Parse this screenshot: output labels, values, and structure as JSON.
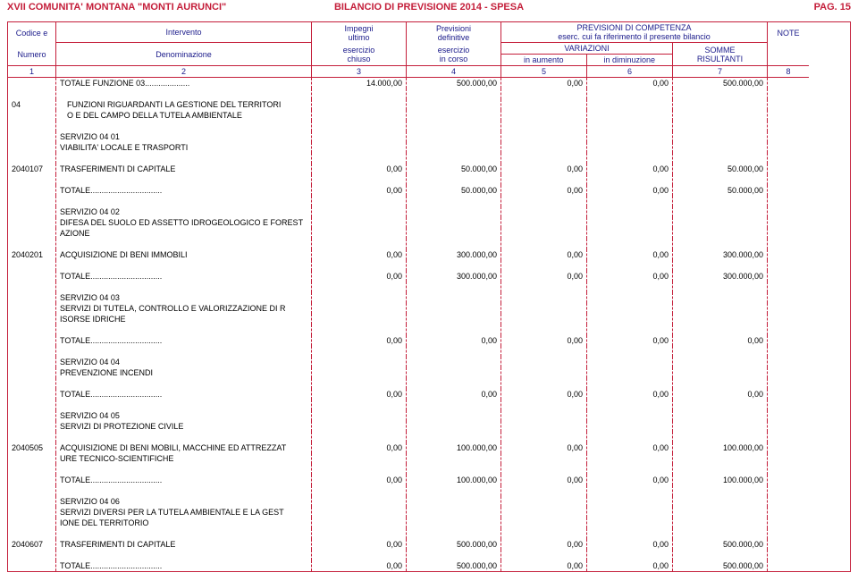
{
  "header": {
    "org": "XVII COMUNITA' MONTANA \"MONTI AURUNCI\"",
    "title": "BILANCIO DI PREVISIONE 2014 - SPESA",
    "page": "PAG. 15"
  },
  "columns": {
    "col1_a": "Codice e",
    "col1_b": "Numero",
    "col2_a": "Intervento",
    "col2_b": "Denominazione",
    "col3_a": "Impegni",
    "col3_b": "ultimo",
    "col3_c": "esercizio",
    "col3_d": "chiuso",
    "col4_a": "Previsioni",
    "col4_b": "definitive",
    "col4_c": "esercizio",
    "col4_d": "in corso",
    "col567_a": "PREVISIONI DI COMPETENZA",
    "col567_b": "eserc. cui fa riferimento il presente bilancio",
    "col56_a": "VARIAZIONI",
    "col5_a": "in aumento",
    "col6_a": "in diminuzione",
    "col7_a": "SOMME",
    "col7_b": "RISULTANTI",
    "col8_a": "NOTE",
    "n1": "1",
    "n2": "2",
    "n3": "3",
    "n4": "4",
    "n5": "5",
    "n6": "6",
    "n7": "7",
    "n8": "8"
  },
  "colors": {
    "border": "#c41e3a",
    "header_text": "#c41e3a",
    "col_label": "#1a1a8a",
    "body_text": "#000000",
    "background": "#ffffff"
  },
  "fonts": {
    "header_size": 11,
    "label_size": 9,
    "body_size": 9
  },
  "rows": [
    {
      "code": "",
      "desc": "TOTALE FUNZIONE  03....................",
      "c3": "14.000,00",
      "c4": "500.000,00",
      "c5": "0,00",
      "c6": "0,00",
      "c7": "500.000,00"
    },
    {
      "sep": true
    },
    {
      "code": "04",
      "desc": "FUNZIONI RIGUARDANTI LA GESTIONE DEL TERRITORI",
      "indent": 1
    },
    {
      "desc": "O E DEL CAMPO DELLA TUTELA AMBIENTALE",
      "indent": 1
    },
    {
      "sep": true
    },
    {
      "desc": "SERVIZIO          04  01"
    },
    {
      "desc": "VIABILITA' LOCALE E TRASPORTI"
    },
    {
      "sep": true
    },
    {
      "code": "2040107",
      "desc": "TRASFERIMENTI DI CAPITALE",
      "c3": "0,00",
      "c4": "50.000,00",
      "c5": "0,00",
      "c6": "0,00",
      "c7": "50.000,00"
    },
    {
      "sep": true
    },
    {
      "desc": "TOTALE................................",
      "c3": "0,00",
      "c4": "50.000,00",
      "c5": "0,00",
      "c6": "0,00",
      "c7": "50.000,00"
    },
    {
      "sep": true
    },
    {
      "desc": "SERVIZIO          04  02"
    },
    {
      "desc": "DIFESA DEL SUOLO ED ASSETTO IDROGEOLOGICO E FOREST"
    },
    {
      "desc": "AZIONE"
    },
    {
      "sep": true
    },
    {
      "code": "2040201",
      "desc": "ACQUISIZIONE DI BENI IMMOBILI",
      "c3": "0,00",
      "c4": "300.000,00",
      "c5": "0,00",
      "c6": "0,00",
      "c7": "300.000,00"
    },
    {
      "sep": true
    },
    {
      "desc": "TOTALE................................",
      "c3": "0,00",
      "c4": "300.000,00",
      "c5": "0,00",
      "c6": "0,00",
      "c7": "300.000,00"
    },
    {
      "sep": true
    },
    {
      "desc": "SERVIZIO          04  03"
    },
    {
      "desc": "SERVIZI DI TUTELA, CONTROLLO E VALORIZZAZIONE DI R"
    },
    {
      "desc": "ISORSE IDRICHE"
    },
    {
      "sep": true
    },
    {
      "desc": "TOTALE................................",
      "c3": "0,00",
      "c4": "0,00",
      "c5": "0,00",
      "c6": "0,00",
      "c7": "0,00"
    },
    {
      "sep": true
    },
    {
      "desc": "SERVIZIO          04  04"
    },
    {
      "desc": "PREVENZIONE INCENDI"
    },
    {
      "sep": true
    },
    {
      "desc": "TOTALE................................",
      "c3": "0,00",
      "c4": "0,00",
      "c5": "0,00",
      "c6": "0,00",
      "c7": "0,00"
    },
    {
      "sep": true
    },
    {
      "desc": "SERVIZIO          04  05"
    },
    {
      "desc": "SERVIZI DI PROTEZIONE CIVILE"
    },
    {
      "sep": true
    },
    {
      "code": "2040505",
      "desc": "ACQUISIZIONE DI BENI MOBILI, MACCHINE ED ATTREZZAT",
      "c3": "0,00",
      "c4": "100.000,00",
      "c5": "0,00",
      "c6": "0,00",
      "c7": "100.000,00"
    },
    {
      "desc": "URE TECNICO-SCIENTIFICHE"
    },
    {
      "sep": true
    },
    {
      "desc": "TOTALE................................",
      "c3": "0,00",
      "c4": "100.000,00",
      "c5": "0,00",
      "c6": "0,00",
      "c7": "100.000,00"
    },
    {
      "sep": true
    },
    {
      "desc": "SERVIZIO          04  06"
    },
    {
      "desc": "SERVIZI DIVERSI PER LA TUTELA AMBIENTALE E LA GEST"
    },
    {
      "desc": "IONE DEL TERRITORIO"
    },
    {
      "sep": true
    },
    {
      "code": "2040607",
      "desc": "TRASFERIMENTI DI CAPITALE",
      "c3": "0,00",
      "c4": "500.000,00",
      "c5": "0,00",
      "c6": "0,00",
      "c7": "500.000,00"
    },
    {
      "sep": true
    },
    {
      "desc": "TOTALE................................",
      "c3": "0,00",
      "c4": "500.000,00",
      "c5": "0,00",
      "c6": "0,00",
      "c7": "500.000,00"
    }
  ]
}
